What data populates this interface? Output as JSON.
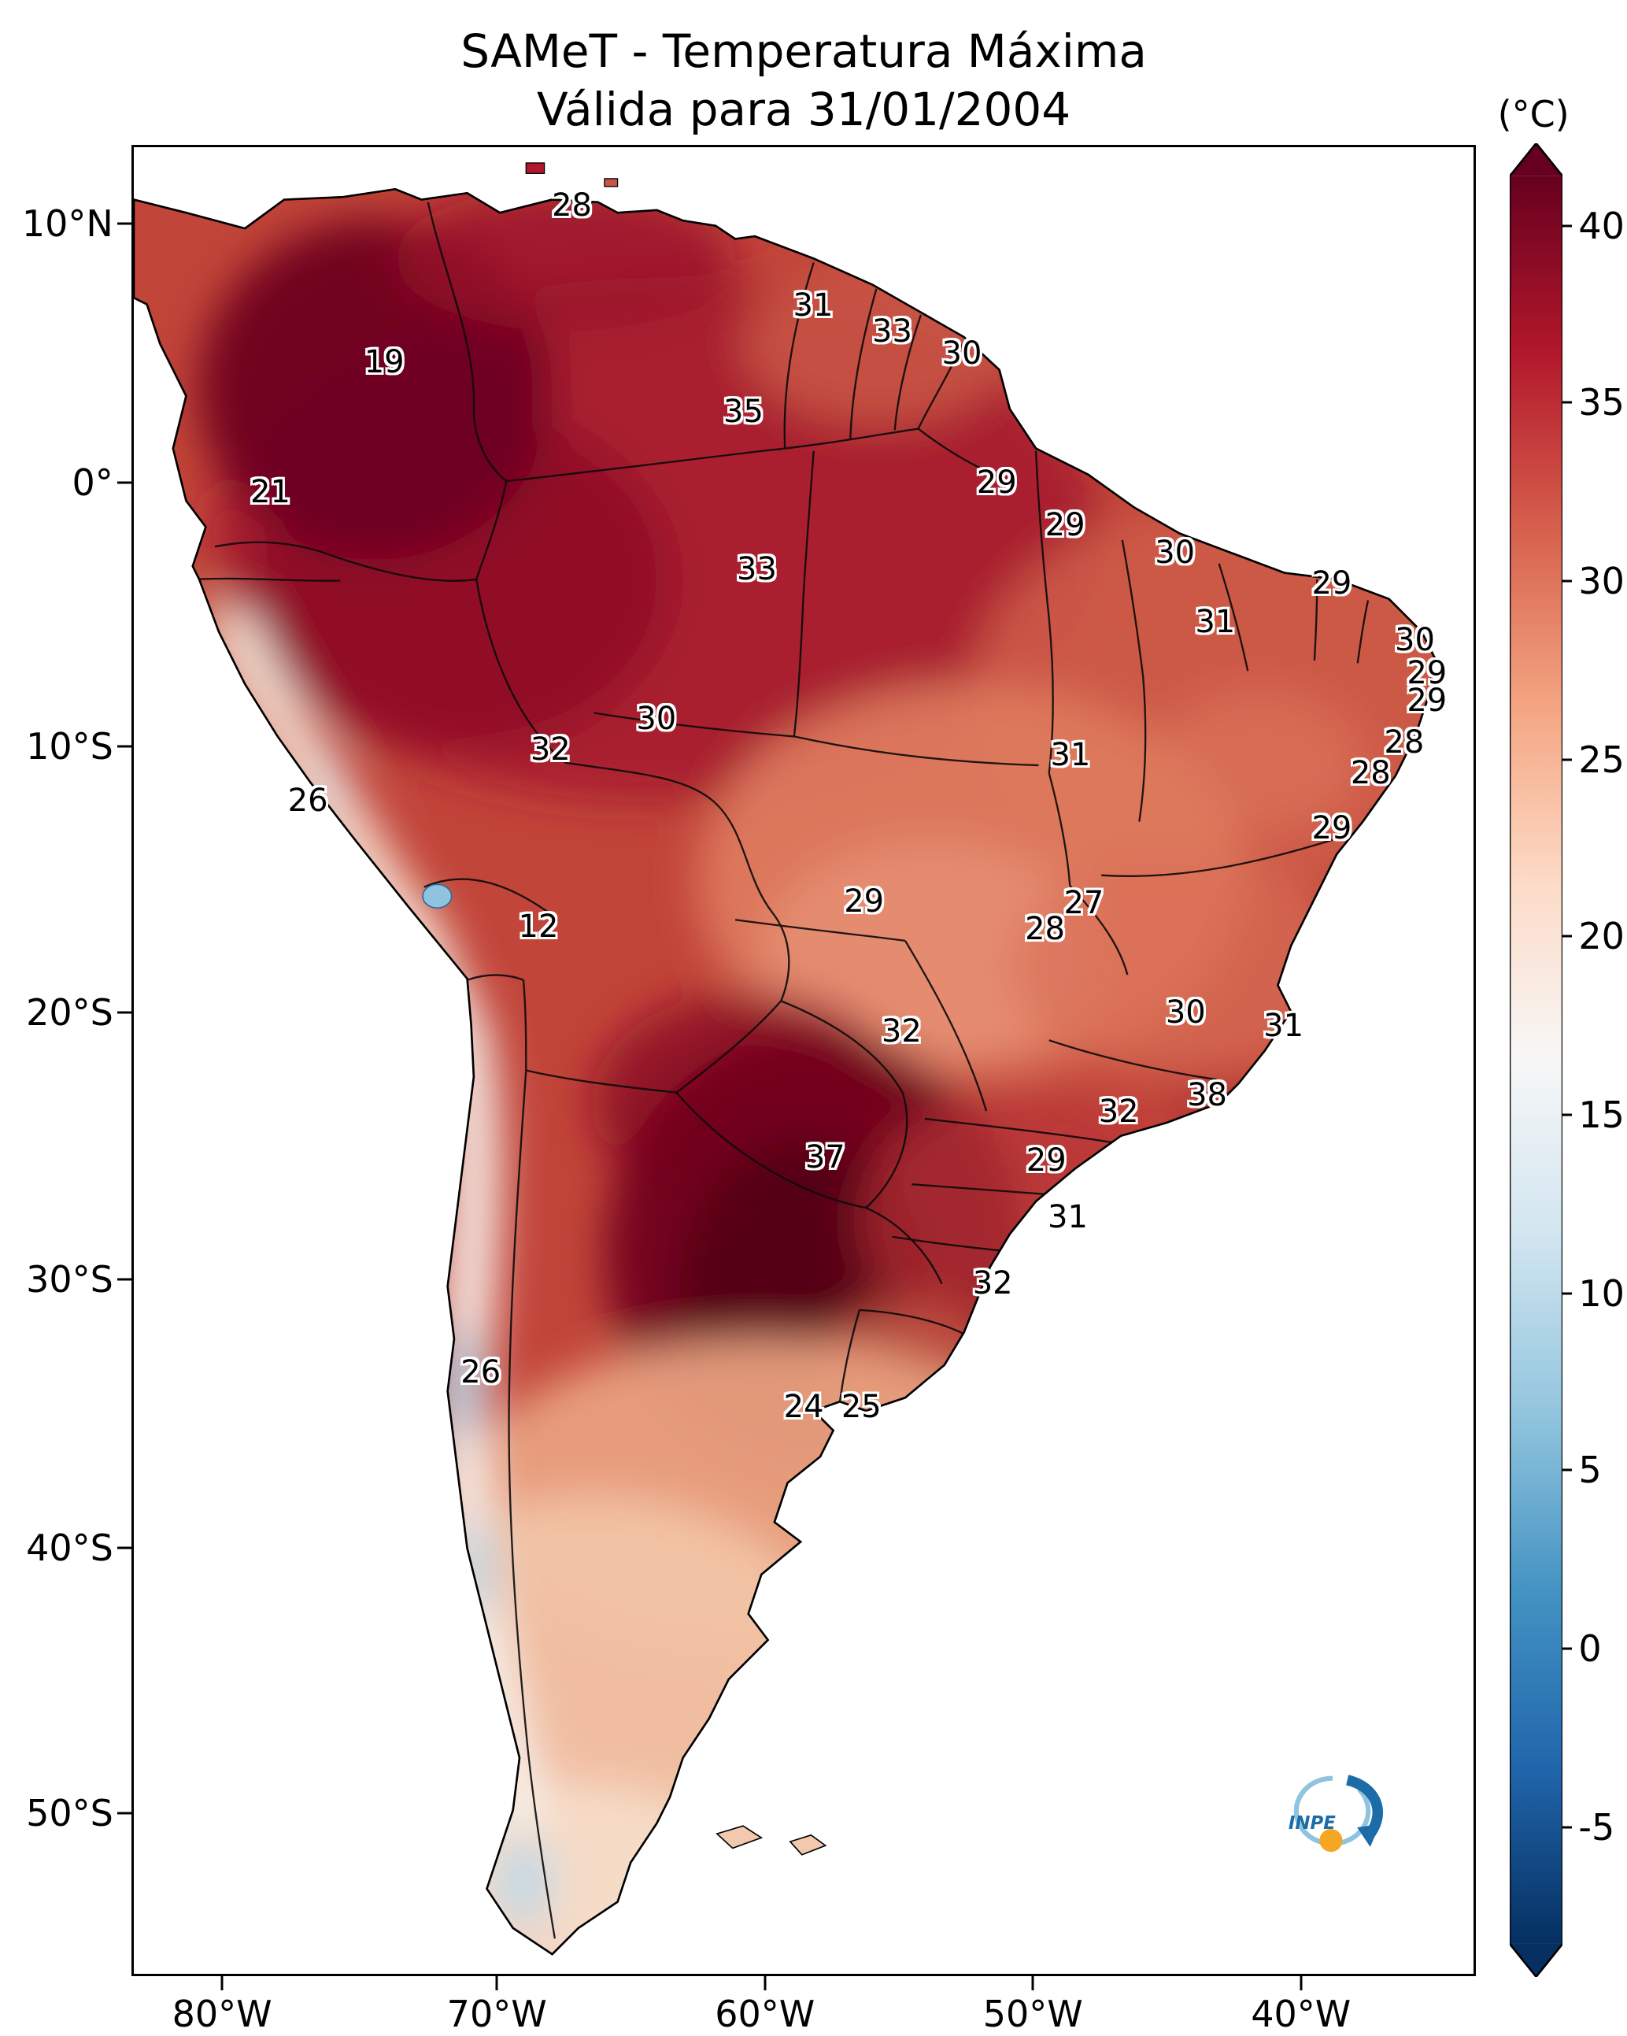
{
  "title": {
    "line1": "SAMeT - Temperatura Máxima",
    "line2": "Válida para 31/01/2004"
  },
  "colorbar": {
    "unit_label": "(°C)",
    "gradient": [
      "#67001f",
      "#b2182b",
      "#d6604d",
      "#f4a582",
      "#fddbc7",
      "#f7f7f7",
      "#d1e5f0",
      "#92c5de",
      "#4393c3",
      "#2166ac",
      "#053061"
    ],
    "ticks": [
      {
        "label": "40",
        "pct": 2.8
      },
      {
        "label": "35",
        "pct": 12.8
      },
      {
        "label": "30",
        "pct": 22.9
      },
      {
        "label": "25",
        "pct": 33.0
      },
      {
        "label": "20",
        "pct": 43.0
      },
      {
        "label": "15",
        "pct": 53.1
      },
      {
        "label": "10",
        "pct": 63.2
      },
      {
        "label": "5",
        "pct": 73.2
      },
      {
        "label": "0",
        "pct": 83.3
      },
      {
        "label": "-5",
        "pct": 93.4
      }
    ]
  },
  "axes": {
    "y_ticks": [
      {
        "label": "10°N",
        "pct": 4.2
      },
      {
        "label": "0°",
        "pct": 18.4
      },
      {
        "label": "10°S",
        "pct": 32.8
      },
      {
        "label": "20°S",
        "pct": 47.4
      },
      {
        "label": "30°S",
        "pct": 62.0
      },
      {
        "label": "40°S",
        "pct": 76.7
      },
      {
        "label": "50°S",
        "pct": 91.2
      }
    ],
    "x_ticks": [
      {
        "label": "80°W",
        "pct": 6.6
      },
      {
        "label": "70°W",
        "pct": 27.1
      },
      {
        "label": "60°W",
        "pct": 47.1
      },
      {
        "label": "50°W",
        "pct": 67.1
      },
      {
        "label": "40°W",
        "pct": 87.1
      }
    ]
  },
  "logo": {
    "label": "INPE"
  },
  "chart_data": {
    "type": "heatmap",
    "title": "SAMeT - Temperatura Máxima",
    "subtitle": "Válida para 31/01/2004",
    "region": "South America",
    "unit": "°C",
    "colormap": "RdBu_r (dark blue → white → dark red)",
    "colorbar_ticks": [
      40,
      35,
      30,
      25,
      20,
      15,
      10,
      5,
      0,
      -5
    ],
    "value_range": [
      -5,
      40
    ],
    "x_axis_ticks": [
      "80°W",
      "70°W",
      "60°W",
      "50°W",
      "40°W"
    ],
    "y_axis_ticks": [
      "10°N",
      "0°",
      "10°S",
      "20°S",
      "30°S",
      "40°S",
      "50°S"
    ],
    "legend_position": "right colorbar, extended triangular ends",
    "grid": false,
    "temperature_labels": [
      {
        "value": "28",
        "x": 32.7,
        "y": 3.2
      },
      {
        "value": "31",
        "x": 50.7,
        "y": 8.7
      },
      {
        "value": "33",
        "x": 56.6,
        "y": 10.1
      },
      {
        "value": "30",
        "x": 61.8,
        "y": 11.3
      },
      {
        "value": "19",
        "x": 18.7,
        "y": 11.8
      },
      {
        "value": "35",
        "x": 45.5,
        "y": 14.5
      },
      {
        "value": "21",
        "x": 10.2,
        "y": 18.9
      },
      {
        "value": "29",
        "x": 64.4,
        "y": 18.4
      },
      {
        "value": "29",
        "x": 69.5,
        "y": 20.7
      },
      {
        "value": "30",
        "x": 77.7,
        "y": 22.2
      },
      {
        "value": "33",
        "x": 46.5,
        "y": 23.1
      },
      {
        "value": "29",
        "x": 89.4,
        "y": 23.9
      },
      {
        "value": "31",
        "x": 80.7,
        "y": 26.0
      },
      {
        "value": "30",
        "x": 95.6,
        "y": 27.0
      },
      {
        "value": "29",
        "x": 96.5,
        "y": 28.8
      },
      {
        "value": "29",
        "x": 96.5,
        "y": 30.3
      },
      {
        "value": "30",
        "x": 39.0,
        "y": 31.3
      },
      {
        "value": "28",
        "x": 94.8,
        "y": 32.6
      },
      {
        "value": "32",
        "x": 31.1,
        "y": 33.0
      },
      {
        "value": "31",
        "x": 69.9,
        "y": 33.3
      },
      {
        "value": "28",
        "x": 92.3,
        "y": 34.3
      },
      {
        "value": "26",
        "x": 13.0,
        "y": 35.8
      },
      {
        "value": "29",
        "x": 89.4,
        "y": 37.3
      },
      {
        "value": "29",
        "x": 54.5,
        "y": 41.3
      },
      {
        "value": "27",
        "x": 70.9,
        "y": 41.4
      },
      {
        "value": "28",
        "x": 68.0,
        "y": 42.8
      },
      {
        "value": "12",
        "x": 30.2,
        "y": 42.7
      },
      {
        "value": "30",
        "x": 78.5,
        "y": 47.4
      },
      {
        "value": "31",
        "x": 85.8,
        "y": 48.1
      },
      {
        "value": "32",
        "x": 57.3,
        "y": 48.4
      },
      {
        "value": "38",
        "x": 80.1,
        "y": 51.9
      },
      {
        "value": "32",
        "x": 73.5,
        "y": 52.8
      },
      {
        "value": "37",
        "x": 51.6,
        "y": 55.3
      },
      {
        "value": "29",
        "x": 68.1,
        "y": 55.5
      },
      {
        "value": "31",
        "x": 69.7,
        "y": 58.6
      },
      {
        "value": "32",
        "x": 64.1,
        "y": 62.2
      },
      {
        "value": "26",
        "x": 25.9,
        "y": 67.1
      },
      {
        "value": "24",
        "x": 50.0,
        "y": 69.0
      },
      {
        "value": "25",
        "x": 54.3,
        "y": 69.0
      }
    ]
  }
}
